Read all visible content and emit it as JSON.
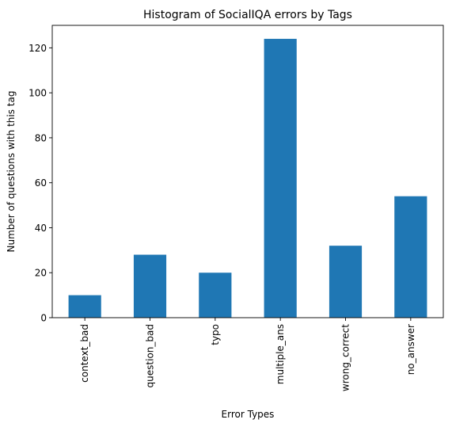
{
  "chart_data": {
    "type": "bar",
    "title": "Histogram of SocialIQA errors by Tags",
    "xlabel": "Error Types",
    "ylabel": "Number of questions with this tag",
    "categories": [
      "context_bad",
      "question_bad",
      "typo",
      "multiple_ans",
      "wrong_correct",
      "no_answer"
    ],
    "values": [
      10,
      28,
      20,
      124,
      32,
      54
    ],
    "ylim": [
      0,
      130
    ],
    "yticks": [
      0,
      20,
      40,
      60,
      80,
      100,
      120
    ],
    "grid": false,
    "legend": "none",
    "bar_color": "#1f77b4"
  }
}
